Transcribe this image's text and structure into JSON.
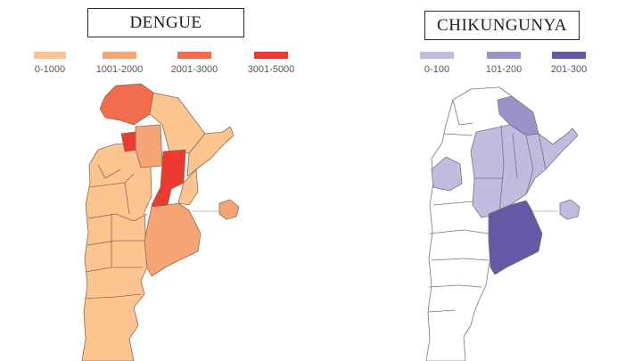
{
  "dengue": {
    "title": "DENGUE",
    "legend": [
      {
        "label": "0-1000",
        "color": "#FCC48E"
      },
      {
        "label": "1001-2000",
        "color": "#F7A474"
      },
      {
        "label": "2001-3000",
        "color": "#F26C4E"
      },
      {
        "label": "3001-5000",
        "color": "#EC3B2E"
      }
    ]
  },
  "chikungunya": {
    "title": "CHIKUNGUNYA",
    "legend": [
      {
        "label": "0-100",
        "color": "#C1BBE0"
      },
      {
        "label": "101-200",
        "color": "#9A92C9"
      },
      {
        "label": "201-300",
        "color": "#6359A6"
      }
    ]
  },
  "colors": {
    "dengue_border": "#8a6a55",
    "chik_border": "#777777",
    "chik_none": "#ffffff"
  }
}
